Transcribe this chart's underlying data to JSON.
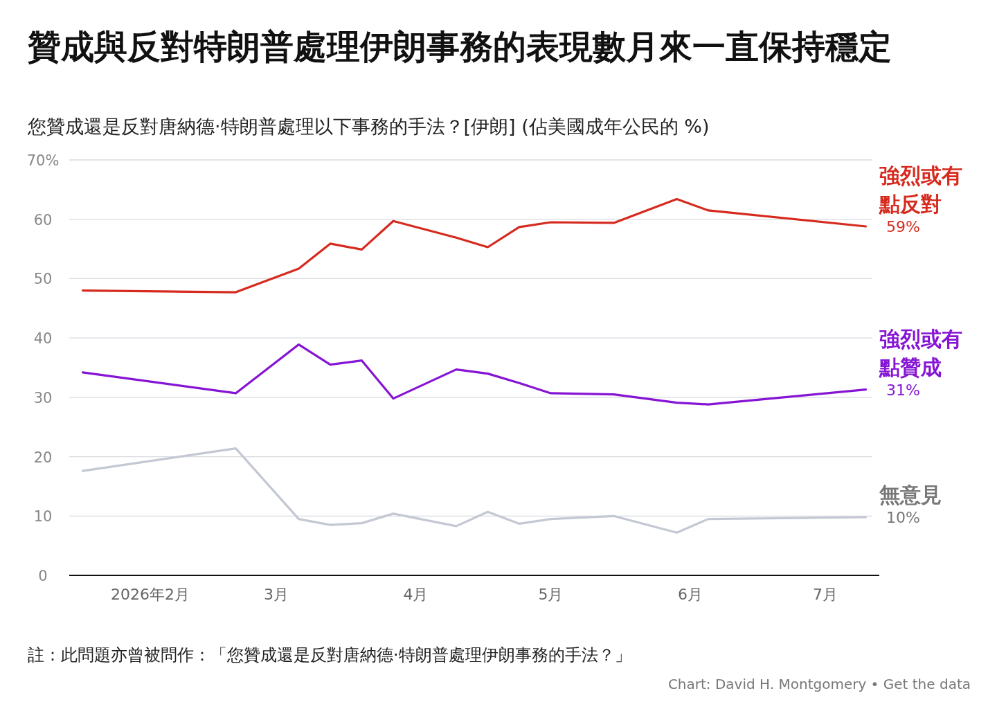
{
  "chart_data": {
    "type": "line",
    "title": "贊成與反對特朗普處理伊朗事務的表現數月來一直保持穩定",
    "subtitle": "您贊成還是反對唐納德·特朗普處理以下事務的手法？[伊朗] (佔美國成年公民的 %)",
    "x": [
      "2026-01-17",
      "2026-02-20",
      "2026-03-06",
      "2026-03-13",
      "2026-03-20",
      "2026-03-27",
      "2026-04-10",
      "2026-04-17",
      "2026-04-24",
      "2026-05-01",
      "2026-05-15",
      "2026-05-29",
      "2026-06-05",
      "2026-07-10"
    ],
    "series": [
      {
        "name": "強烈或有點反對",
        "color": "#d62a1e",
        "values": [
          48.0,
          47.7,
          51.7,
          55.9,
          54.9,
          59.7,
          56.9,
          55.3,
          58.7,
          59.5,
          59.4,
          63.4,
          61.5,
          58.8
        ],
        "value_labels": [
          null,
          null,
          null,
          null,
          null,
          null,
          null,
          null,
          null,
          null,
          null,
          null,
          null,
          "59%"
        ]
      },
      {
        "name": "強烈或有點贊成",
        "color": "#8614d4",
        "values": [
          34.2,
          30.7,
          38.9,
          35.5,
          36.2,
          29.8,
          34.7,
          34.0,
          32.4,
          30.7,
          30.5,
          29.1,
          28.8,
          31.3
        ],
        "value_labels": [
          null,
          null,
          null,
          null,
          null,
          null,
          null,
          null,
          null,
          null,
          null,
          null,
          null,
          "31%"
        ]
      },
      {
        "name": "無意見",
        "color": "#c4c8d3",
        "values": [
          17.6,
          21.4,
          9.5,
          8.5,
          8.8,
          10.4,
          8.3,
          10.7,
          8.7,
          9.5,
          10.0,
          7.2,
          9.5,
          9.8
        ],
        "value_labels": [
          null,
          null,
          null,
          null,
          null,
          null,
          null,
          null,
          null,
          null,
          null,
          null,
          null,
          "10%"
        ]
      }
    ],
    "xlim": [
      "2026-01-14",
      "2026-07-13"
    ],
    "xticks": [
      {
        "value": "2026-02-01",
        "label": "2026年2月"
      },
      {
        "value": "2026-03-01",
        "label": "3月"
      },
      {
        "value": "2026-04-01",
        "label": "4月"
      },
      {
        "value": "2026-05-01",
        "label": "5月"
      },
      {
        "value": "2026-06-01",
        "label": "6月"
      },
      {
        "value": "2026-07-01",
        "label": "7月"
      }
    ],
    "ylim": [
      0,
      70
    ],
    "yticks": [
      0,
      10,
      20,
      30,
      40,
      50,
      60,
      {
        "value": 70,
        "label": "70%"
      }
    ],
    "grid": "y",
    "annotations": [
      "註：此問題亦曾被問作：「您贊成還是反對唐納德·特朗普處理伊朗事務的手法？」",
      "Chart: David H. Montgomery • Get the data"
    ]
  }
}
